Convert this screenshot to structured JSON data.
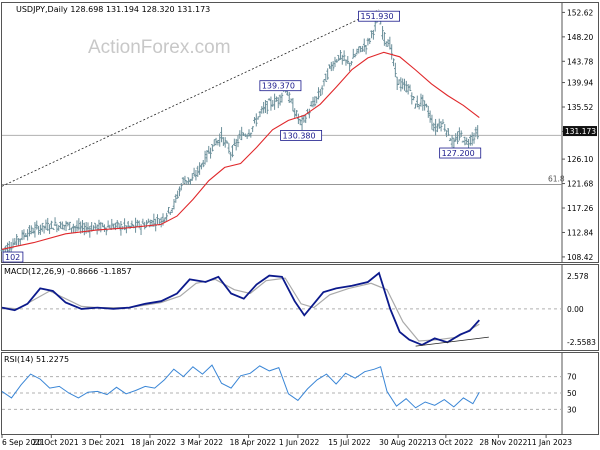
{
  "chart_data": [
    {
      "type": "candlestick",
      "header": "USDJPY,Daily  128.698 131.194 128.320 131.173",
      "watermark": "ActionForex.com",
      "ylim": [
        107.5,
        154.5
      ],
      "yticks": [
        152.62,
        148.2,
        143.78,
        139.94,
        135.52,
        131.1,
        126.1,
        121.68,
        117.26,
        112.84,
        108.42
      ],
      "current_price": "131.173",
      "close": [
        {
          "t": 0,
          "v": 109.6
        },
        {
          "t": 8,
          "v": 111.0
        },
        {
          "t": 15,
          "v": 112.7
        },
        {
          "t": 22,
          "v": 113.5
        },
        {
          "t": 30,
          "v": 114.1
        },
        {
          "t": 40,
          "v": 114.2
        },
        {
          "t": 50,
          "v": 113.6
        },
        {
          "t": 60,
          "v": 113.8
        },
        {
          "t": 70,
          "v": 114.0
        },
        {
          "t": 80,
          "v": 113.8
        },
        {
          "t": 90,
          "v": 114.3
        },
        {
          "t": 95,
          "v": 114.9
        },
        {
          "t": 100,
          "v": 115.0
        },
        {
          "t": 108,
          "v": 117.8
        },
        {
          "t": 114,
          "v": 122.3
        },
        {
          "t": 120,
          "v": 122.4
        },
        {
          "t": 126,
          "v": 125.3
        },
        {
          "t": 132,
          "v": 128.4
        },
        {
          "t": 138,
          "v": 130.2
        },
        {
          "t": 144,
          "v": 127.1
        },
        {
          "t": 150,
          "v": 130.3
        },
        {
          "t": 156,
          "v": 131.1
        },
        {
          "t": 162,
          "v": 134.3
        },
        {
          "t": 168,
          "v": 136.1
        },
        {
          "t": 174,
          "v": 136.8
        },
        {
          "t": 178,
          "v": 139.1
        },
        {
          "t": 182,
          "v": 136.0
        },
        {
          "t": 188,
          "v": 132.4
        },
        {
          "t": 194,
          "v": 135.2
        },
        {
          "t": 200,
          "v": 138.0
        },
        {
          "t": 206,
          "v": 142.5
        },
        {
          "t": 212,
          "v": 144.8
        },
        {
          "t": 218,
          "v": 143.2
        },
        {
          "t": 224,
          "v": 145.6
        },
        {
          "t": 230,
          "v": 147.0
        },
        {
          "t": 234,
          "v": 149.8
        },
        {
          "t": 237,
          "v": 151.9
        },
        {
          "t": 240,
          "v": 148.2
        },
        {
          "t": 244,
          "v": 146.8
        },
        {
          "t": 248,
          "v": 140.5
        },
        {
          "t": 252,
          "v": 139.2
        },
        {
          "t": 256,
          "v": 138.9
        },
        {
          "t": 260,
          "v": 135.8
        },
        {
          "t": 264,
          "v": 136.7
        },
        {
          "t": 268,
          "v": 134.7
        },
        {
          "t": 272,
          "v": 131.5
        },
        {
          "t": 276,
          "v": 132.8
        },
        {
          "t": 280,
          "v": 131.2
        },
        {
          "t": 284,
          "v": 128.6
        },
        {
          "t": 288,
          "v": 130.6
        },
        {
          "t": 292,
          "v": 129.0
        },
        {
          "t": 296,
          "v": 130.2
        },
        {
          "t": 300,
          "v": 131.17
        }
      ],
      "ma": [
        {
          "t": 0,
          "v": 109.8
        },
        {
          "t": 20,
          "v": 111.0
        },
        {
          "t": 40,
          "v": 112.6
        },
        {
          "t": 60,
          "v": 113.3
        },
        {
          "t": 80,
          "v": 113.7
        },
        {
          "t": 100,
          "v": 114.3
        },
        {
          "t": 110,
          "v": 115.8
        },
        {
          "t": 120,
          "v": 118.8
        },
        {
          "t": 130,
          "v": 122.2
        },
        {
          "t": 140,
          "v": 124.6
        },
        {
          "t": 150,
          "v": 125.3
        },
        {
          "t": 160,
          "v": 128.2
        },
        {
          "t": 170,
          "v": 131.4
        },
        {
          "t": 180,
          "v": 133.1
        },
        {
          "t": 190,
          "v": 134.0
        },
        {
          "t": 200,
          "v": 136.0
        },
        {
          "t": 210,
          "v": 139.1
        },
        {
          "t": 220,
          "v": 142.3
        },
        {
          "t": 230,
          "v": 144.4
        },
        {
          "t": 240,
          "v": 145.4
        },
        {
          "t": 250,
          "v": 144.6
        },
        {
          "t": 260,
          "v": 142.2
        },
        {
          "t": 270,
          "v": 139.7
        },
        {
          "t": 280,
          "v": 137.6
        },
        {
          "t": 290,
          "v": 135.8
        },
        {
          "t": 300,
          "v": 133.6
        }
      ],
      "annotations": [
        {
          "text": "151.930",
          "t": 237,
          "v": 151.93
        },
        {
          "text": "139.370",
          "t": 175,
          "v": 139.37
        },
        {
          "text": "130.380",
          "t": 188,
          "v": 130.38
        },
        {
          "text": "127.200",
          "t": 288,
          "v": 127.2
        },
        {
          "text": "102",
          "t": 2,
          "v": 108.4
        }
      ],
      "fib_level": {
        "label": "61.8",
        "v": 121.5
      },
      "trendline": [
        {
          "t": 0,
          "v": 121.2
        },
        {
          "t": 237,
          "v": 153.1
        }
      ]
    },
    {
      "type": "line",
      "header": "MACD(12,26,9) -0.8666 -1.1857",
      "ylim": [
        -3.2,
        3.5
      ],
      "yticks": [
        2.578,
        0.0,
        -2.5583
      ],
      "macd": [
        {
          "t": 0,
          "v": 0.1
        },
        {
          "t": 8,
          "v": -0.1
        },
        {
          "t": 16,
          "v": 0.4
        },
        {
          "t": 24,
          "v": 1.6
        },
        {
          "t": 32,
          "v": 1.4
        },
        {
          "t": 40,
          "v": 0.5
        },
        {
          "t": 50,
          "v": 0.0
        },
        {
          "t": 60,
          "v": 0.1
        },
        {
          "t": 70,
          "v": 0.0
        },
        {
          "t": 80,
          "v": 0.1
        },
        {
          "t": 90,
          "v": 0.4
        },
        {
          "t": 100,
          "v": 0.6
        },
        {
          "t": 110,
          "v": 1.2
        },
        {
          "t": 118,
          "v": 2.3
        },
        {
          "t": 128,
          "v": 2.1
        },
        {
          "t": 136,
          "v": 2.5
        },
        {
          "t": 144,
          "v": 1.2
        },
        {
          "t": 152,
          "v": 0.8
        },
        {
          "t": 160,
          "v": 1.9
        },
        {
          "t": 168,
          "v": 2.6
        },
        {
          "t": 176,
          "v": 2.5
        },
        {
          "t": 184,
          "v": 0.6
        },
        {
          "t": 190,
          "v": -0.5
        },
        {
          "t": 196,
          "v": 0.4
        },
        {
          "t": 202,
          "v": 1.3
        },
        {
          "t": 210,
          "v": 1.6
        },
        {
          "t": 220,
          "v": 1.8
        },
        {
          "t": 230,
          "v": 2.1
        },
        {
          "t": 237,
          "v": 2.8
        },
        {
          "t": 244,
          "v": 0.0
        },
        {
          "t": 250,
          "v": -1.8
        },
        {
          "t": 256,
          "v": -2.4
        },
        {
          "t": 264,
          "v": -2.8
        },
        {
          "t": 272,
          "v": -2.3
        },
        {
          "t": 280,
          "v": -2.6
        },
        {
          "t": 288,
          "v": -2.0
        },
        {
          "t": 294,
          "v": -1.7
        },
        {
          "t": 300,
          "v": -0.87
        }
      ],
      "signal": [
        {
          "t": 0,
          "v": 0.1
        },
        {
          "t": 10,
          "v": 0.0
        },
        {
          "t": 20,
          "v": 0.7
        },
        {
          "t": 30,
          "v": 1.4
        },
        {
          "t": 40,
          "v": 0.8
        },
        {
          "t": 50,
          "v": 0.2
        },
        {
          "t": 60,
          "v": 0.1
        },
        {
          "t": 80,
          "v": 0.1
        },
        {
          "t": 100,
          "v": 0.5
        },
        {
          "t": 112,
          "v": 1.0
        },
        {
          "t": 122,
          "v": 2.0
        },
        {
          "t": 134,
          "v": 2.3
        },
        {
          "t": 146,
          "v": 1.5
        },
        {
          "t": 156,
          "v": 1.2
        },
        {
          "t": 166,
          "v": 2.2
        },
        {
          "t": 178,
          "v": 2.4
        },
        {
          "t": 188,
          "v": 0.4
        },
        {
          "t": 196,
          "v": 0.1
        },
        {
          "t": 206,
          "v": 1.1
        },
        {
          "t": 218,
          "v": 1.6
        },
        {
          "t": 232,
          "v": 2.0
        },
        {
          "t": 242,
          "v": 1.5
        },
        {
          "t": 252,
          "v": -1.0
        },
        {
          "t": 262,
          "v": -2.5
        },
        {
          "t": 274,
          "v": -2.4
        },
        {
          "t": 286,
          "v": -2.2
        },
        {
          "t": 300,
          "v": -1.19
        }
      ],
      "trendline": [
        {
          "t": 260,
          "v": -2.9
        },
        {
          "t": 306,
          "v": -2.2
        }
      ]
    },
    {
      "type": "line",
      "header": "RSI(14) 51.2275",
      "ylim": [
        0,
        100
      ],
      "yticks": [
        70,
        50,
        30
      ],
      "rsi": [
        {
          "t": 0,
          "v": 52
        },
        {
          "t": 6,
          "v": 44
        },
        {
          "t": 12,
          "v": 60
        },
        {
          "t": 18,
          "v": 73
        },
        {
          "t": 24,
          "v": 67
        },
        {
          "t": 30,
          "v": 56
        },
        {
          "t": 36,
          "v": 58
        },
        {
          "t": 42,
          "v": 50
        },
        {
          "t": 48,
          "v": 44
        },
        {
          "t": 54,
          "v": 51
        },
        {
          "t": 60,
          "v": 52
        },
        {
          "t": 66,
          "v": 48
        },
        {
          "t": 72,
          "v": 57
        },
        {
          "t": 78,
          "v": 49
        },
        {
          "t": 84,
          "v": 53
        },
        {
          "t": 90,
          "v": 58
        },
        {
          "t": 96,
          "v": 56
        },
        {
          "t": 102,
          "v": 66
        },
        {
          "t": 108,
          "v": 79
        },
        {
          "t": 114,
          "v": 70
        },
        {
          "t": 120,
          "v": 82
        },
        {
          "t": 126,
          "v": 73
        },
        {
          "t": 132,
          "v": 84
        },
        {
          "t": 138,
          "v": 62
        },
        {
          "t": 144,
          "v": 56
        },
        {
          "t": 150,
          "v": 71
        },
        {
          "t": 156,
          "v": 74
        },
        {
          "t": 162,
          "v": 83
        },
        {
          "t": 168,
          "v": 77
        },
        {
          "t": 174,
          "v": 81
        },
        {
          "t": 180,
          "v": 49
        },
        {
          "t": 186,
          "v": 41
        },
        {
          "t": 192,
          "v": 55
        },
        {
          "t": 198,
          "v": 66
        },
        {
          "t": 204,
          "v": 73
        },
        {
          "t": 210,
          "v": 61
        },
        {
          "t": 216,
          "v": 74
        },
        {
          "t": 222,
          "v": 68
        },
        {
          "t": 228,
          "v": 76
        },
        {
          "t": 234,
          "v": 79
        },
        {
          "t": 238,
          "v": 82
        },
        {
          "t": 242,
          "v": 52
        },
        {
          "t": 248,
          "v": 34
        },
        {
          "t": 254,
          "v": 43
        },
        {
          "t": 260,
          "v": 32
        },
        {
          "t": 266,
          "v": 39
        },
        {
          "t": 272,
          "v": 35
        },
        {
          "t": 278,
          "v": 42
        },
        {
          "t": 284,
          "v": 33
        },
        {
          "t": 290,
          "v": 44
        },
        {
          "t": 296,
          "v": 37
        },
        {
          "t": 300,
          "v": 51
        }
      ]
    }
  ],
  "xaxis_labels": [
    {
      "text": "6 Sep 2021",
      "t": 0
    },
    {
      "text": "20 Oct 2021",
      "t": 31
    },
    {
      "text": "3 Dec 2021",
      "t": 62
    },
    {
      "text": "18 Jan 2022",
      "t": 93
    },
    {
      "text": "3 Mar 2022",
      "t": 124
    },
    {
      "text": "18 Apr 2022",
      "t": 155
    },
    {
      "text": "1 Jun 2022",
      "t": 186
    },
    {
      "text": "15 Jul 2022",
      "t": 217
    },
    {
      "text": "30 Aug 2022",
      "t": 249
    },
    {
      "text": "13 Oct 2022",
      "t": 279
    },
    {
      "text": "28 Nov 2022",
      "t": 312
    },
    {
      "text": "11 Jan 2023",
      "t": 342
    }
  ],
  "colors": {
    "candle": "#6b8f9a",
    "ma": "#e0282b",
    "macd": "#0c1a8c",
    "signal": "#aaaaaa",
    "rsi": "#3a86d6",
    "grid": "#b0b0b0",
    "annotation_border": "#1a1a8c"
  }
}
